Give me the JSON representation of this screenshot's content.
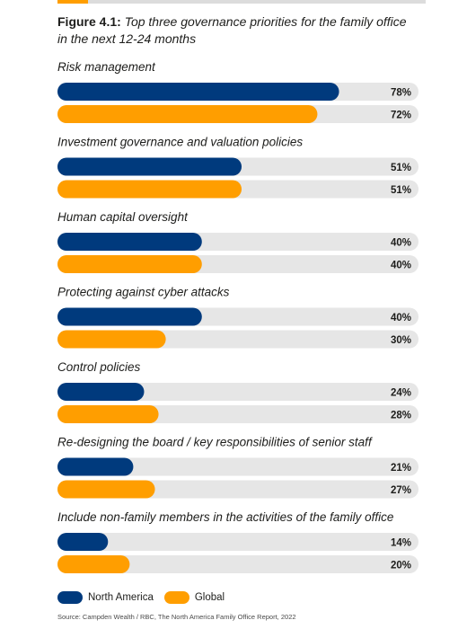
{
  "figure": {
    "label": "Figure 4.1:",
    "caption": "Top three governance priorities for the family office in the next 12-24 months"
  },
  "colors": {
    "north_america": "#003A7D",
    "global": "#FF9E00",
    "track": "#e6e6e6"
  },
  "legend": {
    "north_america": "North America",
    "global": "Global"
  },
  "source": "Source: Campden Wealth / RBC, The North America Family Office Report, 2022",
  "chart_data": {
    "type": "bar",
    "orientation": "horizontal",
    "unit": "%",
    "xlim": [
      0,
      100
    ],
    "categories": [
      "Risk management",
      "Investment governance and valuation policies",
      "Human capital oversight",
      "Protecting against cyber attacks",
      "Control policies",
      "Re-designing the board / key responsibilities of senior staff",
      "Include non-family members in the activities of the family office"
    ],
    "series": [
      {
        "name": "North America",
        "values": [
          78,
          51,
          40,
          40,
          24,
          21,
          14
        ]
      },
      {
        "name": "Global",
        "values": [
          72,
          51,
          40,
          30,
          28,
          27,
          20
        ]
      }
    ],
    "value_labels": {
      "North America": [
        "78%",
        "51%",
        "40%",
        "40%",
        "24%",
        "21%",
        "14%"
      ],
      "Global": [
        "72%",
        "51%",
        "40%",
        "30%",
        "28%",
        "27%",
        "20%"
      ]
    },
    "legend_position": "bottom-left",
    "grid": false
  }
}
